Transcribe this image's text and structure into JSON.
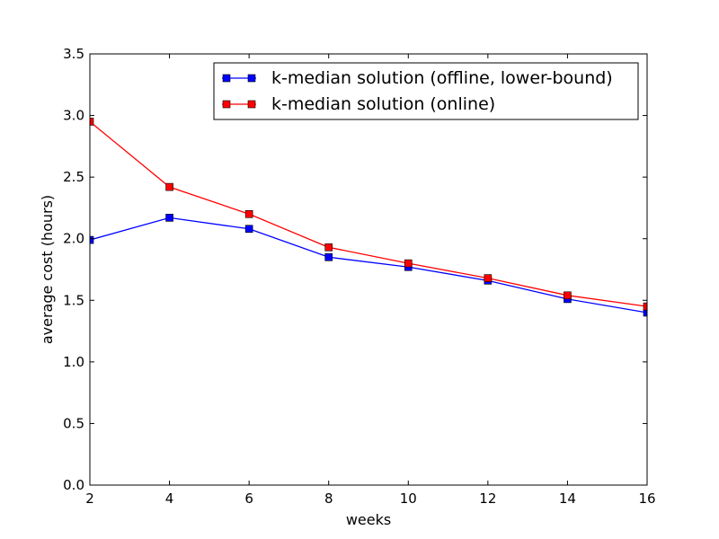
{
  "chart_data": {
    "type": "line",
    "title": "",
    "xlabel": "weeks",
    "ylabel": "average cost (hours)",
    "xlim": [
      2,
      16
    ],
    "ylim": [
      0.0,
      3.5
    ],
    "xticks": [
      "2",
      "4",
      "6",
      "8",
      "10",
      "12",
      "14",
      "16"
    ],
    "yticks": [
      "0.0",
      "0.5",
      "1.0",
      "1.5",
      "2.0",
      "2.5",
      "3.0",
      "3.5"
    ],
    "grid": false,
    "legend_position": "top-right",
    "x": [
      2,
      4,
      6,
      8,
      10,
      12,
      14,
      16
    ],
    "series": [
      {
        "name": "k-median solution (offline, lower-bound)",
        "color": "#0000ff",
        "values": [
          1.99,
          2.17,
          2.08,
          1.85,
          1.77,
          1.66,
          1.51,
          1.4
        ]
      },
      {
        "name": "k-median solution (online)",
        "color": "#ff0000",
        "values": [
          2.95,
          2.42,
          2.2,
          1.93,
          1.8,
          1.68,
          1.54,
          1.45
        ]
      }
    ]
  }
}
